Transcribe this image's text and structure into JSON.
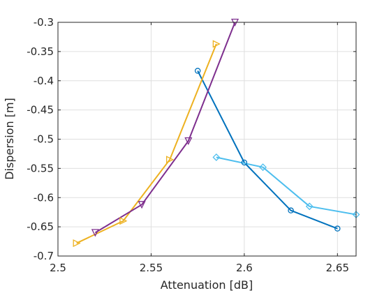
{
  "chart_data": {
    "type": "line",
    "xlabel": "Attenuation [dB]",
    "ylabel": "Dispersion [m]",
    "xlim": [
      2.5,
      2.66
    ],
    "ylim": [
      -0.7,
      -0.3
    ],
    "xticks": [
      2.5,
      2.55,
      2.6,
      2.65
    ],
    "xtick_labels": [
      "2.5",
      "2.55",
      "2.6",
      "2.65"
    ],
    "yticks": [
      -0.7,
      -0.65,
      -0.6,
      -0.55,
      -0.5,
      -0.45,
      -0.4,
      -0.35,
      -0.3
    ],
    "ytick_labels": [
      "-0.7",
      "-0.65",
      "-0.6",
      "-0.55",
      "-0.5",
      "-0.45",
      "-0.4",
      "-0.35",
      "-0.3"
    ],
    "grid": true,
    "legend": "none",
    "series": [
      {
        "color": "#0072BD",
        "marker": "circle",
        "points": [
          [
            2.575,
            -0.383
          ],
          [
            2.6,
            -0.54
          ],
          [
            2.625,
            -0.622
          ],
          [
            2.65,
            -0.653
          ]
        ]
      },
      {
        "color": "#4DBEEE",
        "marker": "diamond",
        "points": [
          [
            2.585,
            -0.531
          ],
          [
            2.61,
            -0.548
          ],
          [
            2.635,
            -0.615
          ],
          [
            2.66,
            -0.629
          ]
        ]
      },
      {
        "color": "#EDB120",
        "marker": "triangle-right",
        "points": [
          [
            2.51,
            -0.678
          ],
          [
            2.535,
            -0.64
          ],
          [
            2.56,
            -0.535
          ],
          [
            2.585,
            -0.337
          ]
        ]
      },
      {
        "color": "#7E2F8E",
        "marker": "triangle-down",
        "points": [
          [
            2.52,
            -0.66
          ],
          [
            2.545,
            -0.612
          ],
          [
            2.57,
            -0.503
          ],
          [
            2.595,
            -0.3
          ]
        ]
      }
    ]
  }
}
